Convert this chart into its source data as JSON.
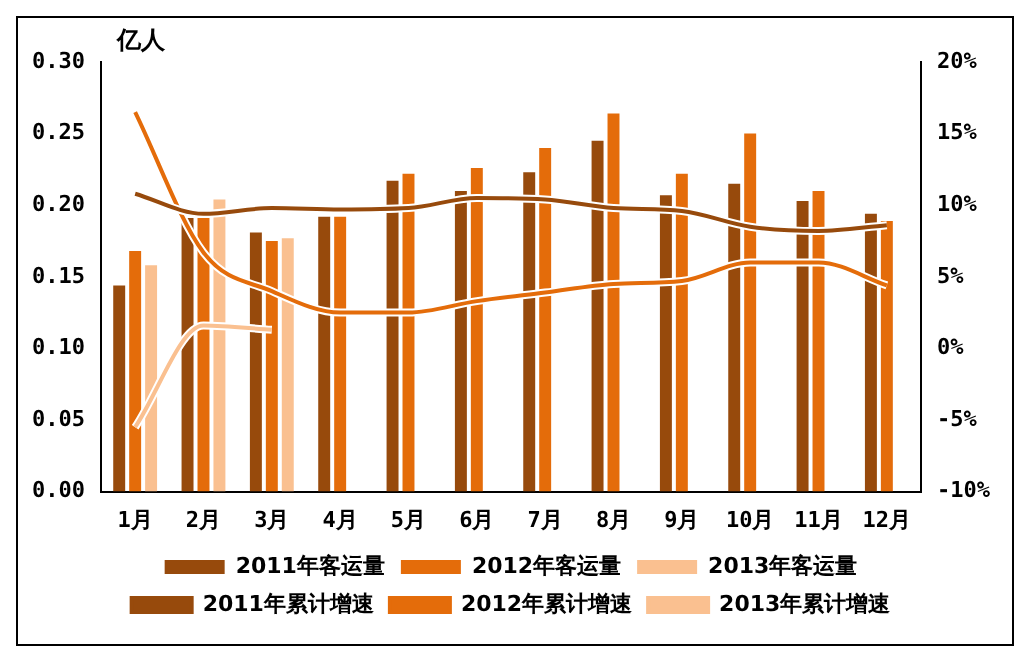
{
  "chart_data": {
    "type": "bar",
    "ylabel": "亿人",
    "categories": [
      "1月",
      "2月",
      "3月",
      "4月",
      "5月",
      "6月",
      "7月",
      "8月",
      "9月",
      "10月",
      "11月",
      "12月"
    ],
    "series": [
      {
        "name": "2011年客运量",
        "color": "#974a0c",
        "values": [
          0.144,
          0.191,
          0.181,
          0.192,
          0.217,
          0.21,
          0.223,
          0.245,
          0.207,
          0.215,
          0.203,
          0.194
        ]
      },
      {
        "name": "2012年客运量",
        "color": "#e46c0a",
        "values": [
          0.168,
          0.191,
          0.175,
          0.192,
          0.222,
          0.226,
          0.24,
          0.264,
          0.222,
          0.25,
          0.21,
          0.189
        ]
      },
      {
        "name": "2013年客运量",
        "color": "#fac090",
        "values": [
          0.158,
          0.204,
          0.177,
          null,
          null,
          null,
          null,
          null,
          null,
          null,
          null,
          null
        ]
      },
      {
        "name": "2011年累计增速",
        "type": "line",
        "axis": "y2",
        "color": "#974a0c",
        "values": [
          10.8,
          9.4,
          9.8,
          9.7,
          9.8,
          10.5,
          10.4,
          9.8,
          9.6,
          8.5,
          8.2,
          8.6
        ]
      },
      {
        "name": "2012年累计增速",
        "type": "line",
        "axis": "y2",
        "color": "#e46c0a",
        "values": [
          16.5,
          6.7,
          4.0,
          2.5,
          2.5,
          3.3,
          3.9,
          4.5,
          4.7,
          6.0,
          6.0,
          4.4
        ]
      },
      {
        "name": "2013年累计增速",
        "type": "line",
        "axis": "y2",
        "color": "#fac090",
        "values": [
          -5.5,
          1.6,
          1.3,
          null,
          null,
          null,
          null,
          null,
          null,
          null,
          null,
          null
        ]
      }
    ],
    "ylim": [
      0,
      0.3
    ],
    "yticks": [
      {
        "value": 0,
        "label": "0.00"
      },
      {
        "value": 0.05,
        "label": "0.05"
      },
      {
        "value": 0.1,
        "label": "0.10"
      },
      {
        "value": 0.15,
        "label": "0.15"
      },
      {
        "value": 0.2,
        "label": "0.20"
      },
      {
        "value": 0.25,
        "label": "0.25"
      },
      {
        "value": 0.3,
        "label": "0.30"
      }
    ],
    "y2lim": [
      -10,
      20
    ],
    "y2ticks": [
      {
        "value": -10,
        "label": "-10%"
      },
      {
        "value": -5,
        "label": "-5%"
      },
      {
        "value": 0,
        "label": "0%"
      },
      {
        "value": 5,
        "label": "5%"
      },
      {
        "value": 10,
        "label": "10%"
      },
      {
        "value": 15,
        "label": "15%"
      },
      {
        "value": 20,
        "label": "20%"
      }
    ],
    "grid": false,
    "legend": "bottom",
    "marker": "none",
    "line_style": "solid"
  }
}
